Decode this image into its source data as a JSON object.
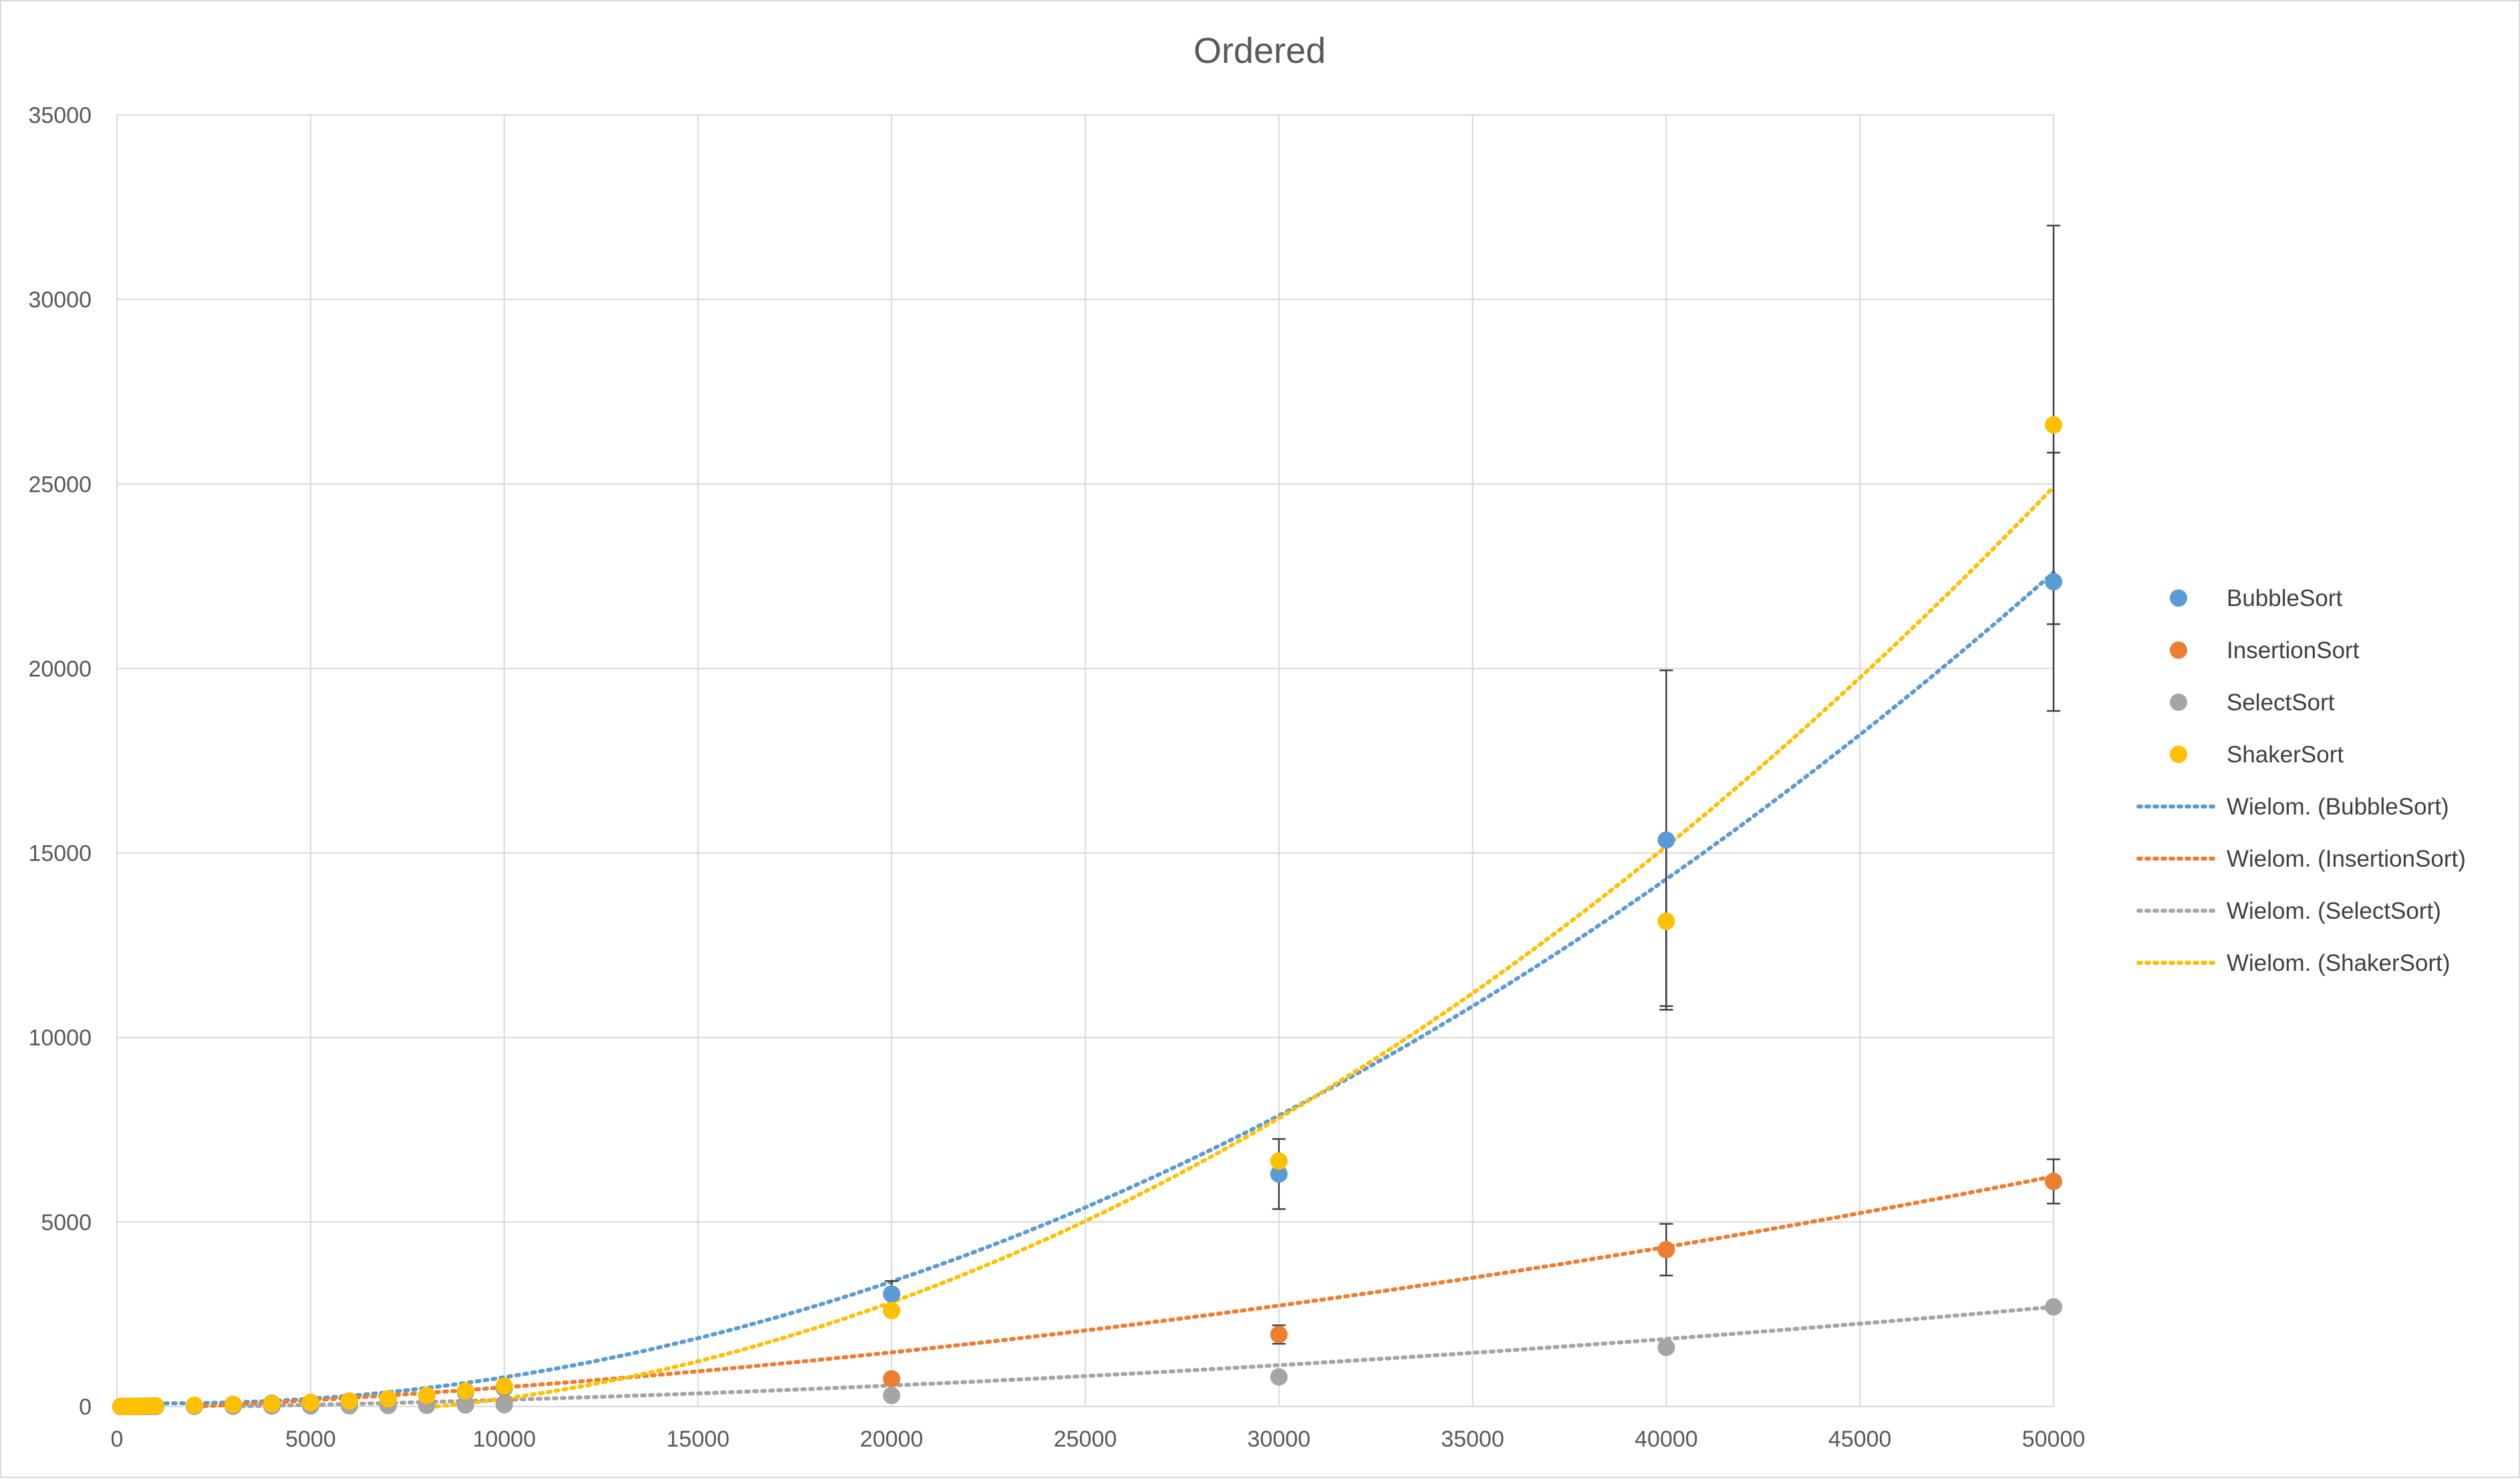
{
  "chart_data": {
    "type": "scatter",
    "title": "Ordered",
    "xlabel": "",
    "ylabel": "",
    "xlim": [
      0,
      50000
    ],
    "ylim": [
      0,
      35000
    ],
    "x_ticks": [
      0,
      5000,
      10000,
      15000,
      20000,
      25000,
      30000,
      35000,
      40000,
      45000,
      50000
    ],
    "y_ticks": [
      0,
      5000,
      10000,
      15000,
      20000,
      25000,
      30000,
      35000
    ],
    "grid": true,
    "legend_position": "right",
    "series": [
      {
        "name": "BubbleSort",
        "color": "#5B9BD5",
        "x": [
          100,
          200,
          300,
          400,
          500,
          600,
          700,
          800,
          900,
          1000,
          2000,
          3000,
          4000,
          5000,
          6000,
          7000,
          8000,
          9000,
          10000,
          20000,
          30000,
          40000,
          50000
        ],
        "y": [
          0,
          0,
          0,
          0,
          2,
          3,
          4,
          5,
          6,
          7,
          25,
          55,
          90,
          110,
          150,
          200,
          290,
          380,
          500,
          3050,
          6300,
          15350,
          22350
        ],
        "error": [
          0,
          0,
          0,
          0,
          0,
          0,
          0,
          0,
          0,
          0,
          0,
          0,
          0,
          0,
          0,
          0,
          0,
          0,
          0,
          350,
          950,
          4600,
          3500
        ]
      },
      {
        "name": "InsertionSort",
        "color": "#ED7D31",
        "x": [
          100,
          200,
          300,
          400,
          500,
          600,
          700,
          800,
          900,
          1000,
          2000,
          3000,
          4000,
          5000,
          6000,
          7000,
          8000,
          9000,
          10000,
          20000,
          30000,
          40000,
          50000
        ],
        "y": [
          0,
          0,
          0,
          0,
          0,
          0,
          1,
          1,
          1,
          1,
          4,
          8,
          14,
          20,
          30,
          40,
          50,
          60,
          80,
          750,
          1950,
          4250,
          6100
        ],
        "error": [
          0,
          0,
          0,
          0,
          0,
          0,
          0,
          0,
          0,
          0,
          0,
          0,
          0,
          0,
          0,
          0,
          0,
          0,
          0,
          0,
          250,
          700,
          600
        ]
      },
      {
        "name": "SelectSort",
        "color": "#A5A5A5",
        "x": [
          100,
          200,
          300,
          400,
          500,
          600,
          700,
          800,
          900,
          1000,
          2000,
          3000,
          4000,
          5000,
          6000,
          7000,
          8000,
          9000,
          10000,
          20000,
          30000,
          40000,
          50000
        ],
        "y": [
          0,
          0,
          0,
          0,
          0,
          0,
          0,
          0,
          0,
          1,
          3,
          6,
          10,
          15,
          20,
          25,
          30,
          40,
          50,
          300,
          800,
          1600,
          2700
        ],
        "error": [
          0,
          0,
          0,
          0,
          0,
          0,
          0,
          0,
          0,
          0,
          0,
          0,
          0,
          0,
          0,
          0,
          0,
          0,
          0,
          0,
          0,
          0,
          0
        ]
      },
      {
        "name": "ShakerSort",
        "color": "#FFC000",
        "x": [
          100,
          200,
          300,
          400,
          500,
          600,
          700,
          800,
          900,
          1000,
          2000,
          3000,
          4000,
          5000,
          6000,
          7000,
          8000,
          9000,
          10000,
          20000,
          30000,
          40000,
          50000
        ],
        "y": [
          2,
          3,
          4,
          6,
          8,
          10,
          12,
          14,
          16,
          20,
          35,
          60,
          80,
          110,
          150,
          210,
          300,
          420,
          550,
          2600,
          6650,
          13150,
          26600
        ],
        "error": [
          0,
          0,
          0,
          0,
          0,
          0,
          0,
          0,
          0,
          0,
          0,
          0,
          0,
          0,
          0,
          0,
          0,
          0,
          0,
          0,
          0,
          2300,
          5400
        ]
      }
    ],
    "trendlines": [
      {
        "name": "Wielom. (BubbleSort)",
        "color": "#5B9BD5",
        "type": "polynomial",
        "order": 2,
        "coefficients": [
          106.17,
          -0.026655,
          9.53e-06
        ]
      },
      {
        "name": "Wielom. (InsertionSort)",
        "color": "#ED7D31",
        "type": "polynomial",
        "order": 2,
        "coefficients": [
          -103.1,
          0.04628,
          1.61e-06
        ]
      },
      {
        "name": "Wielom. (SelectSort)",
        "color": "#A5A5A5",
        "type": "polynomial",
        "order": 2,
        "coefficients": [
          -50.0,
          0.015,
          8e-07
        ]
      },
      {
        "name": "Wielom. (ShakerSort)",
        "color": "#FFC000",
        "type": "polynomial",
        "order": 2,
        "coefficients": [
          -21.77,
          -0.095066,
          1.1876e-05
        ]
      }
    ]
  }
}
